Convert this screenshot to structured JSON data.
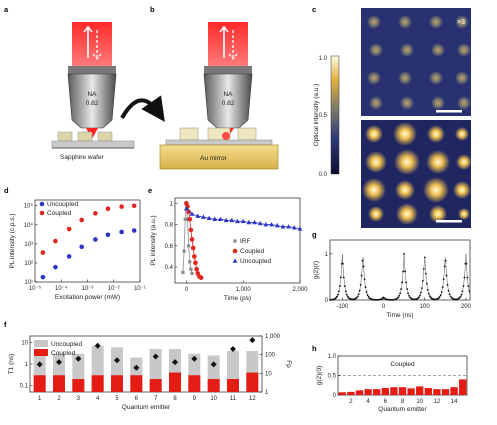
{
  "panels": {
    "a": {
      "label": "a",
      "objective": "NA",
      "na_value": "0.82",
      "substrate": "Sapphire wafer"
    },
    "b": {
      "label": "b",
      "objective": "NA",
      "na_value": "0.82",
      "substrate": "Au mirror"
    },
    "c": {
      "label": "c",
      "multiplier": "×3",
      "colorbar_label": "Optical intensity (a.u.)",
      "colorbar_ticks": [
        "1.0",
        "0.5",
        "0.0"
      ]
    },
    "d": {
      "label": "d"
    },
    "e": {
      "label": "e"
    },
    "f": {
      "label": "f"
    },
    "g": {
      "label": "g"
    },
    "h": {
      "label": "h",
      "annotation": "Coupled"
    }
  },
  "colors": {
    "coupled": "#e0271f",
    "uncoupled": "#2b36c8",
    "irf": "#8c8c8c",
    "bar_uncoupled": "#c8c8c8",
    "bar_coupled": "#e51c13",
    "laser": "#ff2020"
  },
  "chart_data": [
    {
      "id": "d",
      "type": "scatter",
      "xlabel": "Excitation power (mW)",
      "ylabel": "PL intensity (c.p.s.)",
      "xscale": "log",
      "yscale": "log",
      "xlim": [
        1e-05,
        0.1
      ],
      "ylim": [
        10,
        200000
      ],
      "xticks": [
        "10⁻⁵",
        "10⁻⁴",
        "10⁻³",
        "10⁻²",
        "10⁻¹"
      ],
      "yticks": [
        "10¹",
        "10²",
        "10³",
        "10⁴",
        "10⁵"
      ],
      "legend": "top-left",
      "series": [
        {
          "name": "Uncoupled",
          "x": [
            2e-05,
            6e-05,
            0.0002,
            0.0006,
            0.002,
            0.006,
            0.02,
            0.06
          ],
          "y": [
            18,
            60,
            220,
            700,
            1700,
            3000,
            4200,
            5000
          ]
        },
        {
          "name": "Coupled",
          "x": [
            2e-05,
            6e-05,
            0.0002,
            0.0006,
            0.002,
            0.006,
            0.02,
            0.06
          ],
          "y": [
            350,
            1400,
            6000,
            18000,
            40000,
            70000,
            90000,
            100000
          ]
        }
      ]
    },
    {
      "id": "e",
      "type": "line",
      "xlabel": "Time (ps)",
      "ylabel": "PL intensity (a.u.)",
      "xlim": [
        -200,
        2000
      ],
      "ylim": [
        0.25,
        1.05
      ],
      "xticks": [
        "0",
        "1,000",
        "2,000"
      ],
      "yticks": [
        "0.4",
        "0.6",
        "0.8",
        "1"
      ],
      "legend": "bottom-right",
      "series": [
        {
          "name": "IRF",
          "x": [
            -60,
            -40,
            -20,
            0,
            20,
            40,
            60,
            80,
            100
          ],
          "y": [
            0.35,
            0.55,
            0.85,
            1.0,
            0.85,
            0.6,
            0.45,
            0.38,
            0.34
          ]
        },
        {
          "name": "Coupled",
          "x": [
            0,
            20,
            40,
            60,
            80,
            100,
            120,
            140,
            160,
            180,
            200,
            230,
            260
          ],
          "y": [
            1.0,
            0.97,
            0.92,
            0.85,
            0.75,
            0.66,
            0.58,
            0.5,
            0.44,
            0.38,
            0.34,
            0.31,
            0.3
          ]
        },
        {
          "name": "Uncoupled",
          "x": [
            0,
            100,
            200,
            300,
            400,
            500,
            600,
            700,
            800,
            900,
            1000,
            1100,
            1200,
            1300,
            1400,
            1500,
            1600,
            1700,
            1800,
            1900,
            2000
          ],
          "y": [
            0.95,
            0.9,
            0.88,
            0.87,
            0.86,
            0.85,
            0.85,
            0.84,
            0.84,
            0.83,
            0.83,
            0.82,
            0.82,
            0.81,
            0.8,
            0.8,
            0.79,
            0.78,
            0.78,
            0.77,
            0.76
          ]
        }
      ]
    },
    {
      "id": "f",
      "type": "bar",
      "xlabel": "Quantum emitter",
      "ylabel": "T1 (ns)",
      "y2label": "Fp",
      "categories": [
        "1",
        "2",
        "3",
        "4",
        "5",
        "6",
        "7",
        "8",
        "9",
        "10",
        "11",
        "12"
      ],
      "yscale": "log",
      "ylim": [
        0.05,
        20
      ],
      "y2lim": [
        1,
        1000
      ],
      "yticks": [
        "0.1",
        "1",
        "10"
      ],
      "y2ticks": [
        "1",
        "10",
        "100",
        "1,000"
      ],
      "legend": "top-left",
      "series": [
        {
          "name": "Uncoupled",
          "values": [
            3,
            3,
            3,
            7,
            6,
            2,
            5,
            5,
            3,
            2.5,
            4,
            4
          ]
        },
        {
          "name": "Coupled",
          "values": [
            0.3,
            0.3,
            0.2,
            0.3,
            0.3,
            0.3,
            0.2,
            0.4,
            0.3,
            0.2,
            0.2,
            0.4
          ]
        },
        {
          "name": "Fp",
          "values": [
            30,
            40,
            60,
            300,
            50,
            20,
            80,
            40,
            60,
            30,
            200,
            600
          ]
        }
      ]
    },
    {
      "id": "g",
      "type": "scatter",
      "xlabel": "Time (ns)",
      "ylabel": "g(2)(τ)",
      "xlim": [
        -130,
        210
      ],
      "ylim": [
        0,
        1.3
      ],
      "xticks": [
        "-100",
        "0",
        "100",
        "200"
      ],
      "yticks": [
        "0",
        "1"
      ],
      "peaks_at": [
        -100,
        -50,
        50,
        100,
        150,
        200
      ],
      "zero_delay_value": 0.06
    },
    {
      "id": "h",
      "type": "bar",
      "xlabel": "Quantum emitter",
      "ylabel": "g(2)(0)",
      "categories": [
        "1",
        "2",
        "3",
        "4",
        "5",
        "6",
        "7",
        "8",
        "9",
        "10",
        "11",
        "12",
        "13",
        "14",
        "15"
      ],
      "xticks": [
        "2",
        "4",
        "6",
        "8",
        "10",
        "12",
        "14"
      ],
      "values": [
        0.07,
        0.08,
        0.12,
        0.15,
        0.15,
        0.18,
        0.2,
        0.2,
        0.17,
        0.22,
        0.18,
        0.15,
        0.15,
        0.2,
        0.4
      ],
      "ylim": [
        0,
        1
      ],
      "yticks": [
        "0",
        "0.5",
        "1.0"
      ],
      "dashed_line": 0.5
    }
  ]
}
